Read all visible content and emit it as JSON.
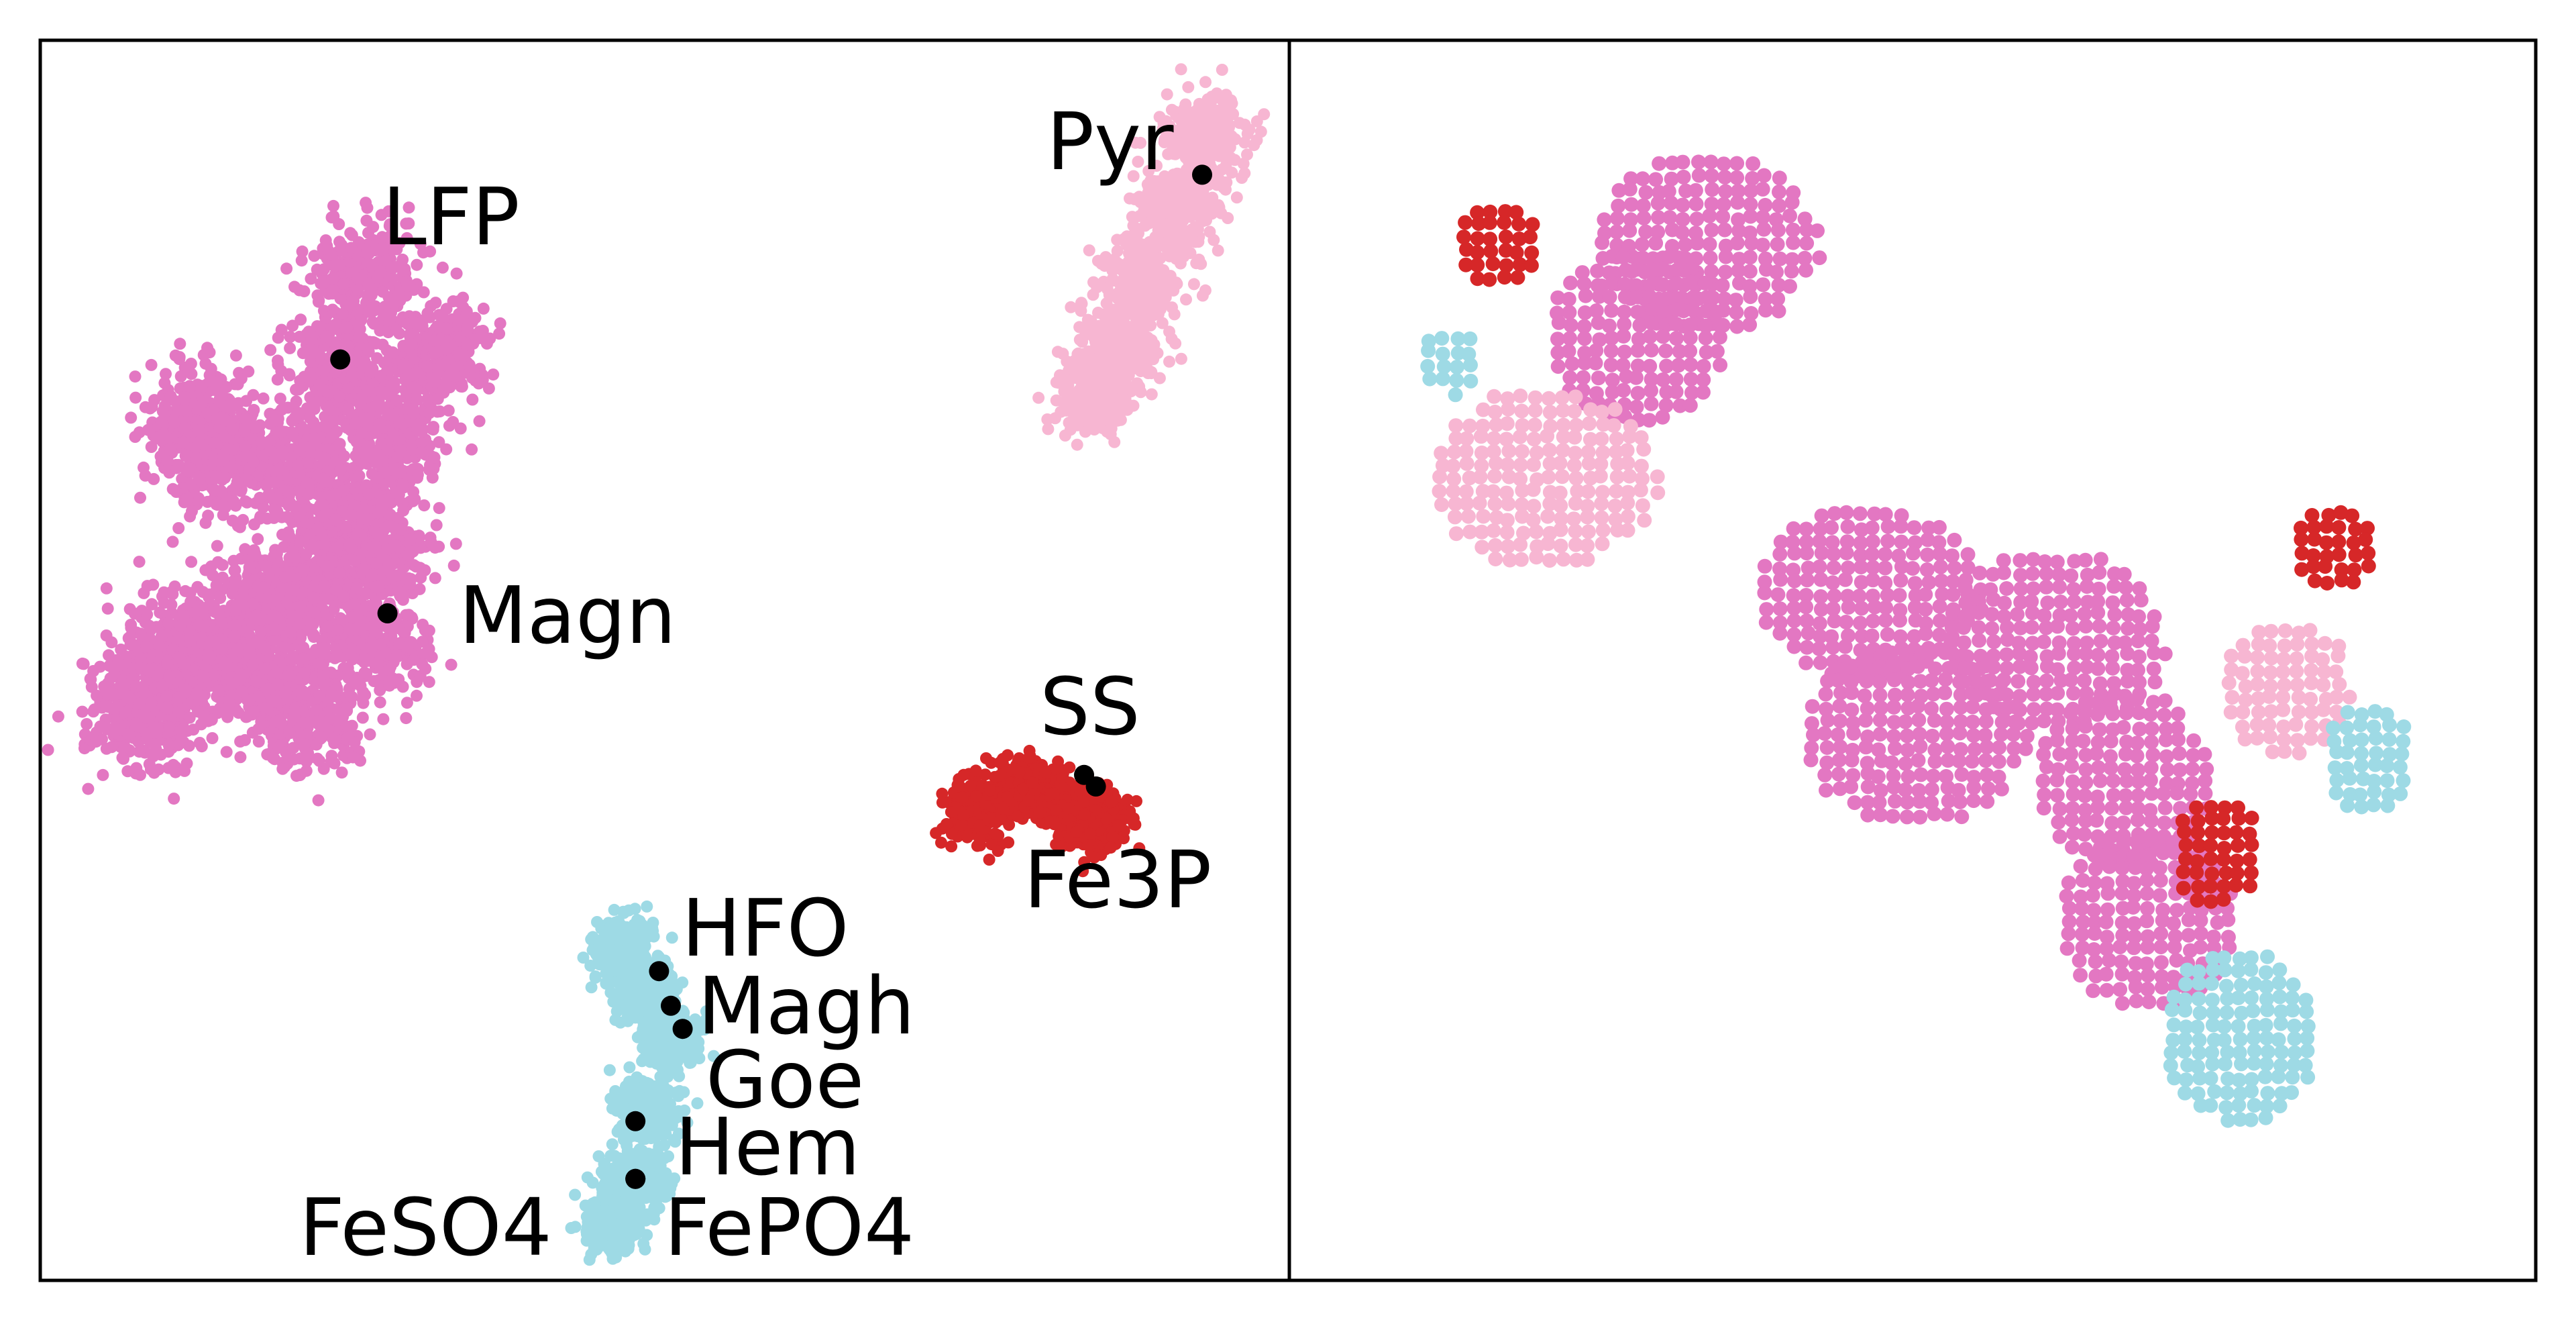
{
  "colors": {
    "pink": "#e377c2",
    "light_pink": "#f7b6d2",
    "red": "#d62728",
    "light_blue": "#9edae5",
    "reference": "#000000",
    "frame": "#000000"
  },
  "chart_data": [
    {
      "type": "scatter",
      "title": "",
      "xlabel": "",
      "ylabel": "",
      "grid": false,
      "ticks": false,
      "clusters": [
        {
          "name": "",
          "color": "#e377c2",
          "spread": 3.0,
          "anchors": [
            [
              0.24,
              0.84
            ],
            [
              0.22,
              0.76
            ],
            [
              0.22,
              0.64
            ],
            [
              0.18,
              0.68
            ],
            [
              0.12,
              0.68
            ],
            [
              0.1,
              0.72
            ],
            [
              0.26,
              0.7
            ],
            [
              0.25,
              0.6
            ],
            [
              0.25,
              0.52
            ],
            [
              0.16,
              0.56
            ],
            [
              0.1,
              0.52
            ],
            [
              0.07,
              0.5
            ],
            [
              0.05,
              0.46
            ],
            [
              0.15,
              0.5
            ],
            [
              0.3,
              0.78
            ],
            [
              0.21,
              0.58
            ],
            [
              0.19,
              0.46
            ]
          ]
        },
        {
          "name": "",
          "color": "#f7b6d2",
          "spread": 2.2,
          "anchors": [
            [
              0.95,
              0.96
            ],
            [
              0.93,
              0.9
            ],
            [
              0.9,
              0.84
            ],
            [
              0.88,
              0.78
            ],
            [
              0.86,
              0.74
            ]
          ]
        },
        {
          "name": "",
          "color": "#d62728",
          "spread": 1.6,
          "anchors": [
            [
              0.76,
              0.38
            ],
            [
              0.8,
              0.4
            ],
            [
              0.84,
              0.38
            ],
            [
              0.86,
              0.37
            ]
          ]
        },
        {
          "name": "",
          "color": "#9edae5",
          "spread": 1.6,
          "anchors": [
            [
              0.46,
              0.26
            ],
            [
              0.48,
              0.22
            ],
            [
              0.5,
              0.18
            ],
            [
              0.48,
              0.12
            ],
            [
              0.47,
              0.06
            ],
            [
              0.45,
              0.02
            ]
          ]
        }
      ],
      "reference_points": [
        {
          "label": "LFP",
          "x": 0.22,
          "y": 0.77
        },
        {
          "label": "Pyr",
          "x": 0.95,
          "y": 0.93
        },
        {
          "label": "Magn",
          "x": 0.26,
          "y": 0.55
        },
        {
          "label": "SS",
          "x": 0.85,
          "y": 0.41
        },
        {
          "label": "Fe3P",
          "x": 0.86,
          "y": 0.4
        },
        {
          "label": "HFO",
          "x": 0.49,
          "y": 0.24
        },
        {
          "label": "Magh",
          "x": 0.5,
          "y": 0.21
        },
        {
          "label": "Goe",
          "x": 0.51,
          "y": 0.19
        },
        {
          "label": "Hem",
          "x": 0.47,
          "y": 0.11
        },
        {
          "label": "FeSO4",
          "x": 0.47,
          "y": 0.06
        },
        {
          "label": "FePO4",
          "x": 0.47,
          "y": 0.06
        }
      ]
    },
    {
      "type": "scatter",
      "title": "",
      "xlabel": "",
      "ylabel": "",
      "grid": false,
      "ticks": false,
      "regions": [
        {
          "color": "#e377c2",
          "blobs": [
            [
              0.32,
              0.86,
              0.1,
              0.08
            ],
            [
              0.26,
              0.78,
              0.08,
              0.08
            ],
            [
              0.46,
              0.56,
              0.1,
              0.08
            ],
            [
              0.5,
              0.44,
              0.1,
              0.08
            ],
            [
              0.62,
              0.52,
              0.1,
              0.08
            ],
            [
              0.68,
              0.4,
              0.08,
              0.08
            ],
            [
              0.7,
              0.28,
              0.08,
              0.08
            ]
          ]
        },
        {
          "color": "#f7b6d2",
          "blobs": [
            [
              0.18,
              0.66,
              0.1,
              0.08
            ],
            [
              0.82,
              0.48,
              0.06,
              0.06
            ]
          ]
        },
        {
          "color": "#d62728",
          "blobs": [
            [
              0.14,
              0.86,
              0.04,
              0.04
            ],
            [
              0.76,
              0.34,
              0.04,
              0.05
            ],
            [
              0.86,
              0.6,
              0.04,
              0.04
            ]
          ]
        },
        {
          "color": "#9edae5",
          "blobs": [
            [
              0.89,
              0.42,
              0.04,
              0.05
            ],
            [
              0.78,
              0.18,
              0.07,
              0.08
            ],
            [
              0.1,
              0.76,
              0.03,
              0.03
            ]
          ]
        }
      ]
    }
  ]
}
